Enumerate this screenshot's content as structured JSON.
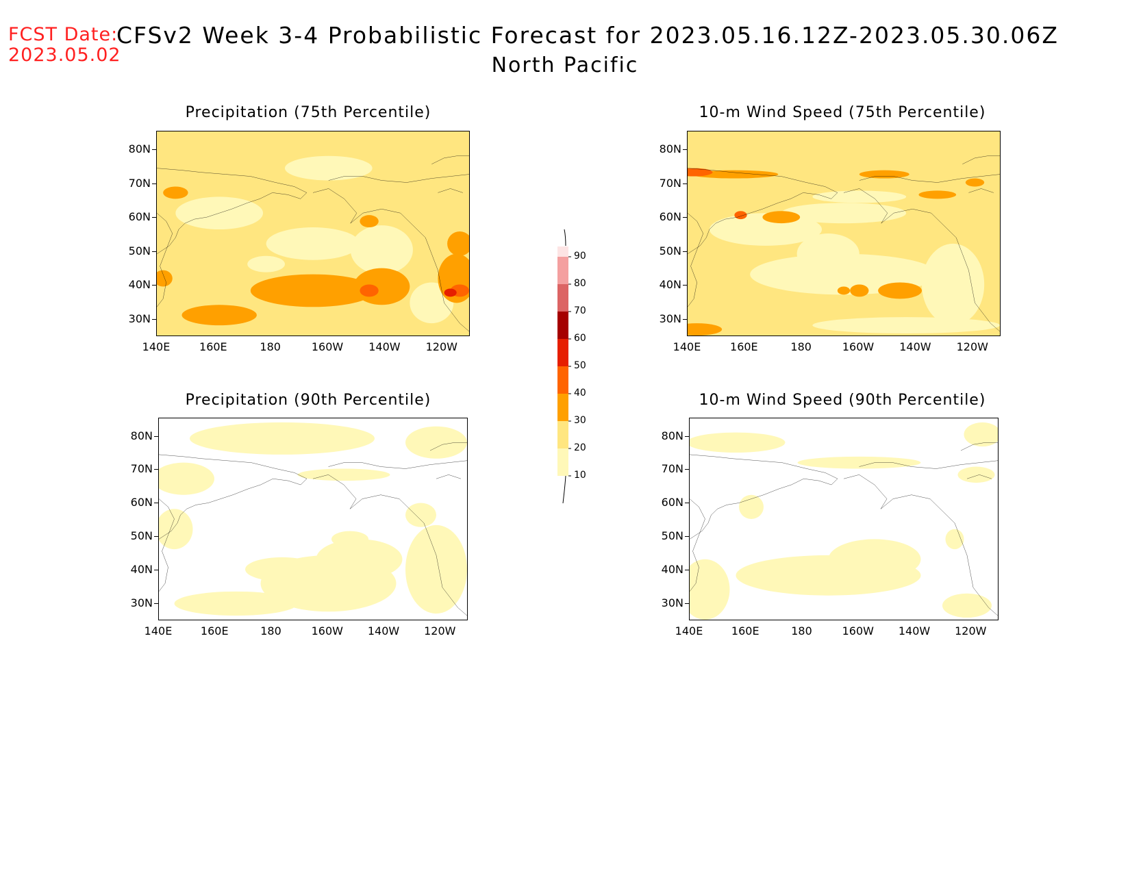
{
  "header": {
    "fcst_label": "FCST Date:",
    "fcst_date": "2023.05.02",
    "title": "CFSv2 Week 3-4 Probabilistic Forecast for 2023.05.16.12Z-2023.05.30.06Z",
    "region": "North Pacific"
  },
  "panels": [
    {
      "id": "precip75",
      "title": "Precipitation (75th Percentile)"
    },
    {
      "id": "wind75",
      "title": "10-m Wind Speed (75th Percentile)"
    },
    {
      "id": "precip90",
      "title": "Precipitation (90th Percentile)"
    },
    {
      "id": "wind90",
      "title": "10-m Wind Speed (90th Percentile)"
    }
  ],
  "axes": {
    "lat_labels": [
      "80N",
      "70N",
      "60N",
      "50N",
      "40N",
      "30N"
    ],
    "lon_labels": [
      "140E",
      "160E",
      "180",
      "160W",
      "140W",
      "120W"
    ]
  },
  "colorbar": {
    "levels": [
      "10",
      "20",
      "30",
      "40",
      "50",
      "60",
      "70",
      "80",
      "90"
    ],
    "colors": [
      "#fff8b8",
      "#ffe680",
      "#ffa000",
      "#ff6400",
      "#e61e00",
      "#a50000",
      "#dc6464",
      "#f4a0a0",
      "#fde4e4"
    ]
  }
}
